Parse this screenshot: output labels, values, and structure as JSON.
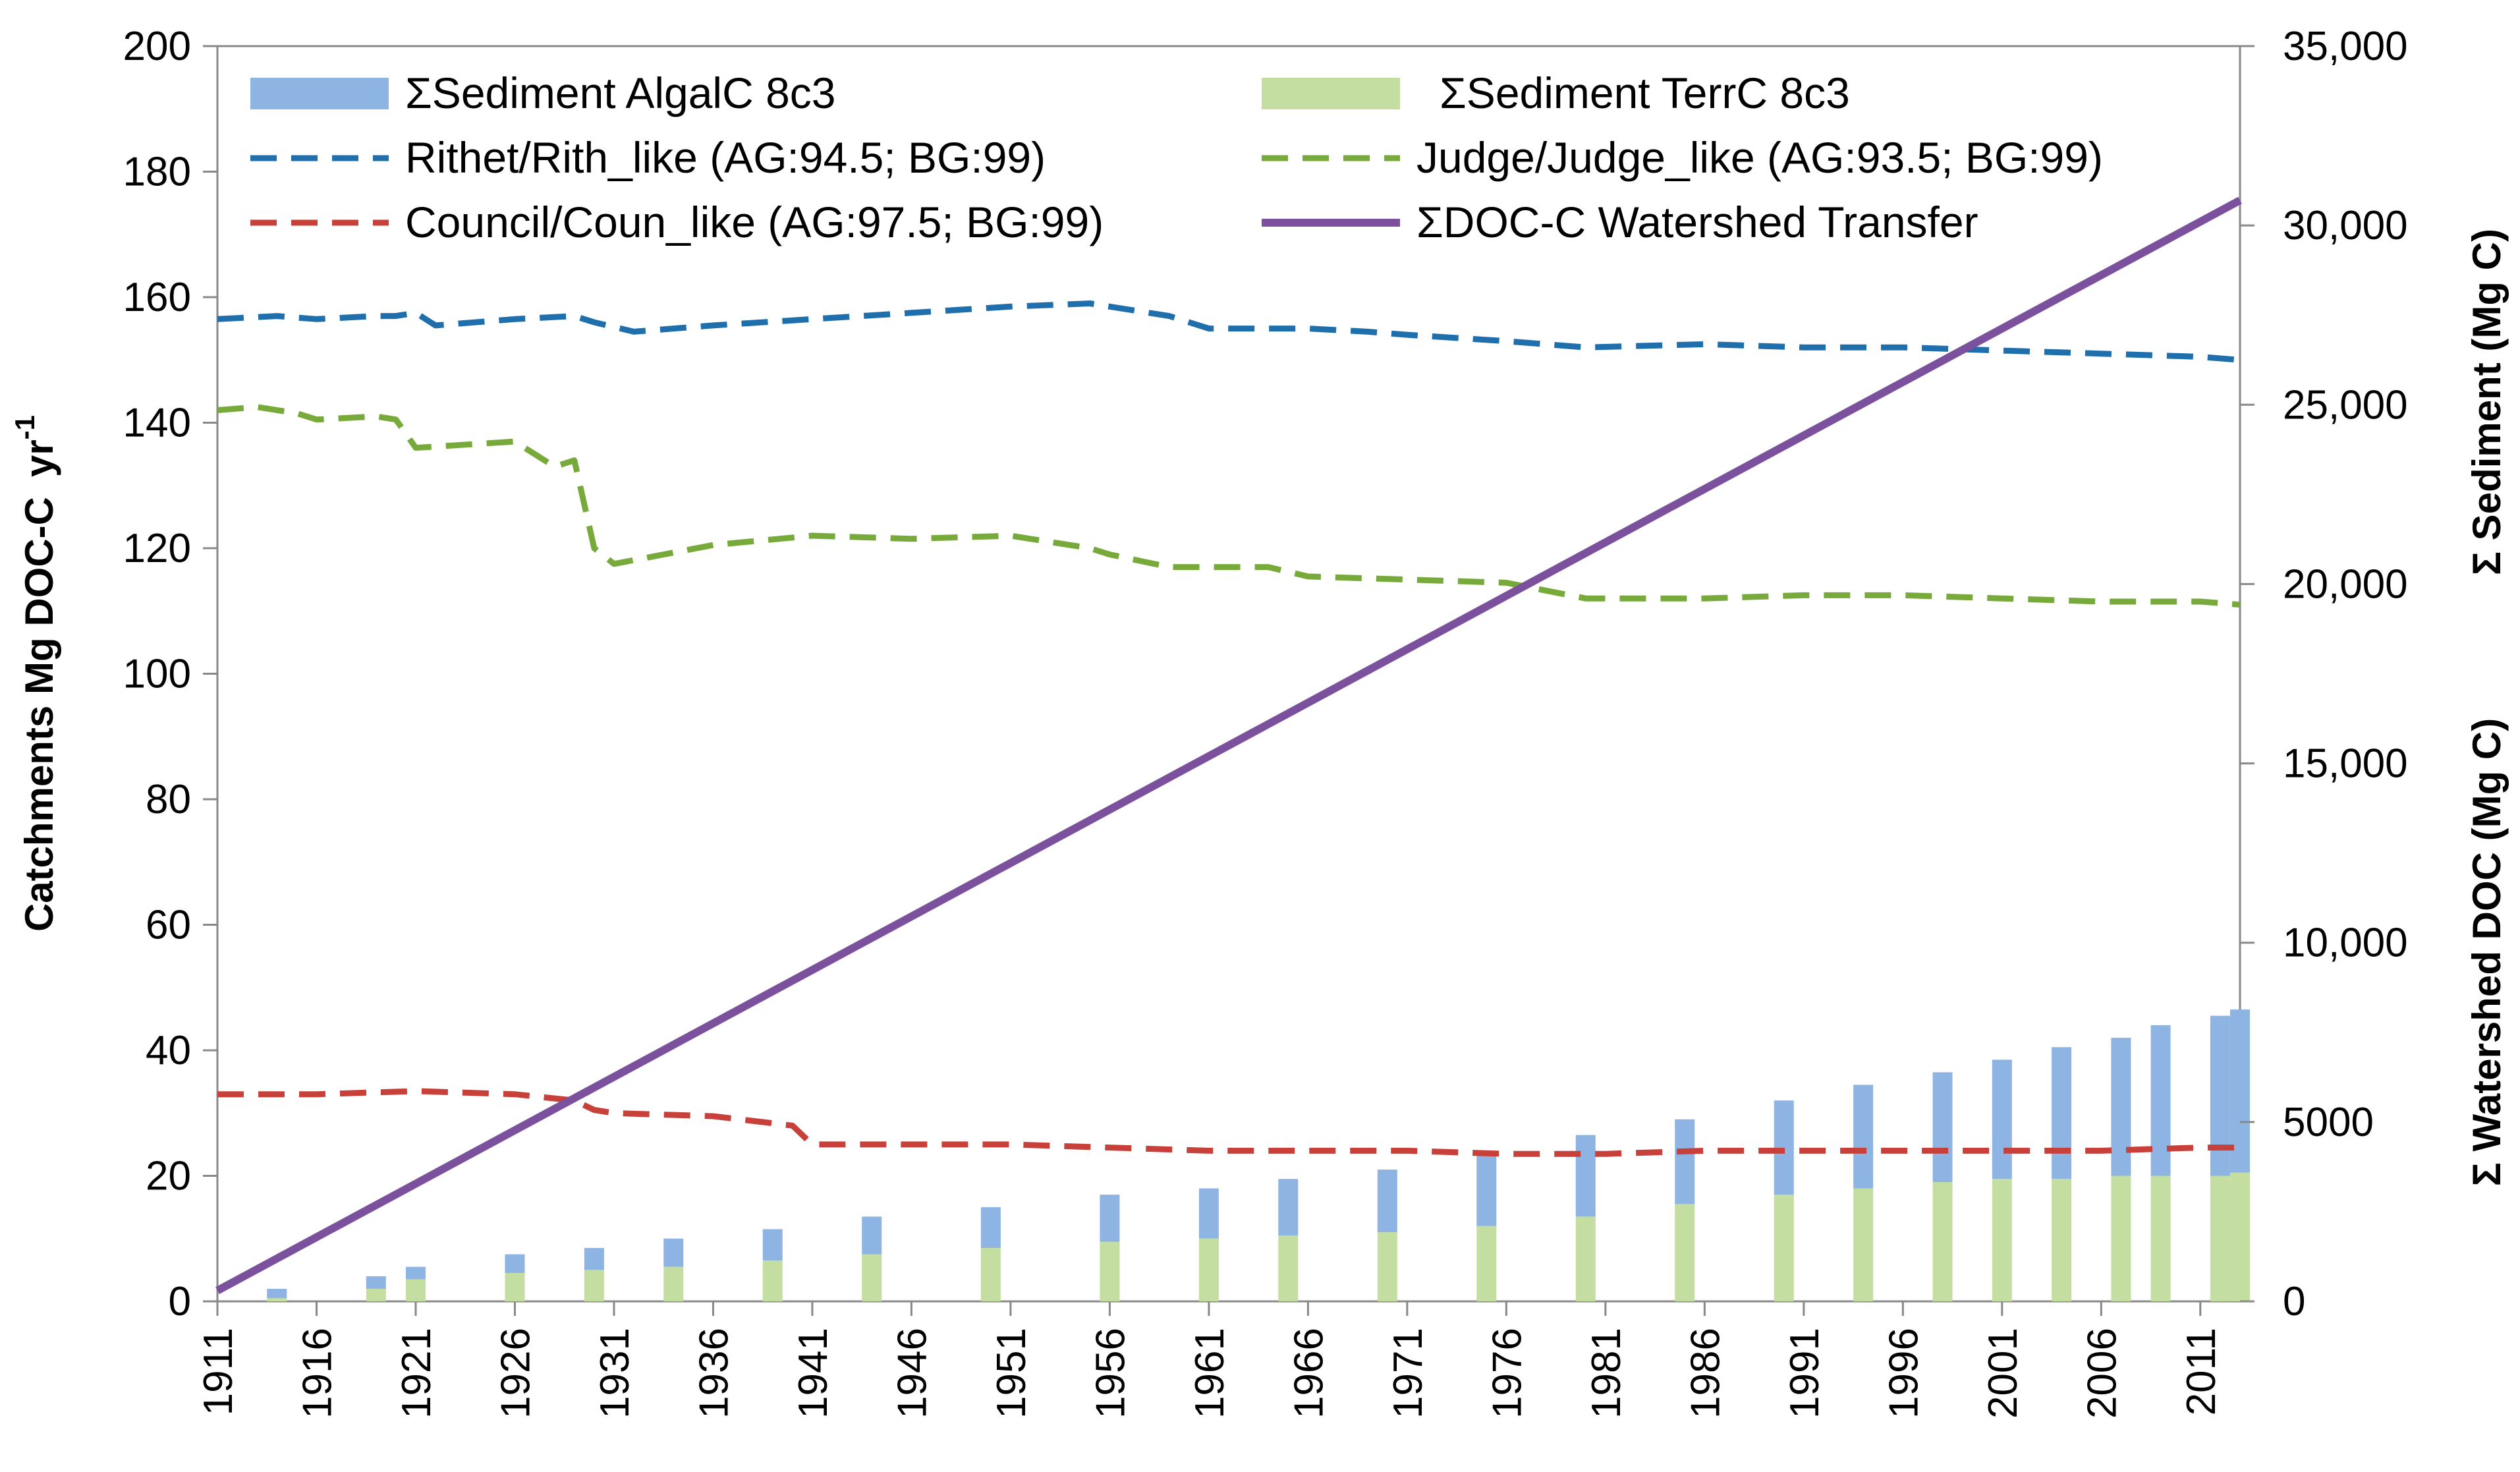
{
  "chart_data": {
    "type": "bar+line",
    "title": "",
    "xlabel": "",
    "ylabel_left": "Catchments Mg DOC-C",
    "ylabel_left_unit": "yr",
    "ylabel_left_sup": "-1",
    "ylabel_right_top": "Σ Sediment  (Mg C)",
    "ylabel_right_bottom": "Σ Watershed DOC  (Mg C)",
    "left_axis": {
      "min": 0,
      "max": 200,
      "ticks": [
        0,
        20,
        40,
        60,
        80,
        100,
        120,
        140,
        160,
        180,
        200
      ],
      "tick_labels": [
        "0",
        "20",
        "40",
        "60",
        "80",
        "100",
        "120",
        "140",
        "160",
        "180",
        "200"
      ]
    },
    "right_axis": {
      "min": 0,
      "max": 35000,
      "ticks": [
        0,
        5000,
        10000,
        15000,
        20000,
        25000,
        30000,
        35000
      ],
      "tick_labels": [
        "0",
        "5000",
        "10,000",
        "15,000",
        "20,000",
        "25,000",
        "30,000",
        "35,000"
      ]
    },
    "x_axis": {
      "min": 1911,
      "max": 2013,
      "ticks": [
        1911,
        1916,
        1921,
        1926,
        1931,
        1936,
        1941,
        1946,
        1951,
        1956,
        1961,
        1966,
        1971,
        1976,
        1981,
        1986,
        1991,
        1996,
        2001,
        2006,
        2011
      ],
      "tick_labels": [
        "1911",
        "1916",
        "1921",
        "1926",
        "1931",
        "1936",
        "1941",
        "1946",
        "1951",
        "1956",
        "1961",
        "1966",
        "1971",
        "1976",
        "1981",
        "1986",
        "1991",
        "1996",
        "2001",
        "2006",
        "2011"
      ]
    },
    "legend": {
      "placement": "top-inside",
      "entries": [
        {
          "key": "algal",
          "label": "ΣSediment AlgalC 8c3",
          "color": "#8db4e2",
          "style": "bar"
        },
        {
          "key": "terr",
          "label": "ΣSediment TerrC 8c3",
          "color": "#c3dea0",
          "style": "bar"
        },
        {
          "key": "rithet",
          "label": "Rithet/Rith_like (AG:94.5; BG:99)",
          "color": "#1f6fad",
          "style": "dash"
        },
        {
          "key": "judge",
          "label": "Judge/Judge_like (AG:93.5; BG:99)",
          "color": "#77aa3a",
          "style": "dash"
        },
        {
          "key": "council",
          "label": "Council/Coun_like (AG:97.5; BG:99)",
          "color": "#c8403a",
          "style": "dash"
        },
        {
          "key": "doc",
          "label": "ΣDOC-C Watershed Transfer",
          "color": "#7b519d",
          "style": "solid"
        }
      ]
    },
    "bars": {
      "axis": "left",
      "years": [
        1914,
        1919,
        1921,
        1926,
        1930,
        1934,
        1939,
        1944,
        1950,
        1956,
        1961,
        1965,
        1970,
        1975,
        1980,
        1985,
        1990,
        1994,
        1998,
        2001,
        2004,
        2007,
        2009,
        2012,
        2013
      ],
      "terr": [
        0.5,
        2.0,
        3.5,
        4.5,
        5.0,
        5.5,
        6.5,
        7.5,
        8.5,
        9.5,
        10.0,
        10.5,
        11.0,
        12.0,
        13.5,
        15.5,
        17.0,
        18.0,
        19.0,
        19.5,
        19.5,
        20.0,
        20.0,
        20.0,
        20.5
      ],
      "total": [
        2.0,
        4.0,
        5.5,
        7.5,
        8.5,
        10.0,
        11.5,
        13.5,
        15.0,
        17.0,
        18.0,
        19.5,
        21.0,
        23.5,
        26.5,
        29.0,
        32.0,
        34.5,
        36.5,
        38.5,
        40.5,
        42.0,
        44.0,
        45.5,
        46.5
      ]
    },
    "series": [
      {
        "key": "rithet",
        "axis": "left",
        "x": [
          1911,
          1914,
          1916,
          1919,
          1920,
          1921,
          1922,
          1924,
          1926,
          1929,
          1930,
          1932,
          1936,
          1941,
          1946,
          1951,
          1955,
          1956,
          1959,
          1961,
          1966,
          1969,
          1971,
          1976,
          1980,
          1986,
          1991,
          1996,
          2001,
          2006,
          2011,
          2013
        ],
        "y": [
          156.5,
          157,
          156.5,
          157,
          157,
          157.5,
          155.5,
          156,
          156.5,
          157,
          156,
          154.5,
          155.5,
          156.5,
          157.5,
          158.5,
          159,
          158.5,
          157,
          155,
          155,
          154.5,
          154,
          153,
          152,
          152.5,
          152,
          152,
          151.5,
          151,
          150.5,
          150
        ]
      },
      {
        "key": "judge",
        "axis": "left",
        "x": [
          1911,
          1913,
          1915,
          1916,
          1919,
          1920,
          1921,
          1926,
          1928,
          1929,
          1930,
          1931,
          1936,
          1941,
          1946,
          1951,
          1955,
          1956,
          1959,
          1961,
          1964,
          1966,
          1971,
          1976,
          1980,
          1986,
          1991,
          1996,
          2001,
          2006,
          2011,
          2013
        ],
        "y": [
          142,
          142.5,
          141.5,
          140.5,
          141,
          140.5,
          136,
          137,
          133,
          134,
          120,
          117.5,
          120.5,
          122,
          121.5,
          122,
          120,
          119,
          117,
          117,
          117,
          115.5,
          115,
          114.5,
          112,
          112,
          112.5,
          112.5,
          112,
          111.5,
          111.5,
          111
        ]
      },
      {
        "key": "council",
        "axis": "left",
        "x": [
          1911,
          1916,
          1921,
          1926,
          1929,
          1930,
          1931,
          1936,
          1940,
          1941,
          1946,
          1951,
          1956,
          1961,
          1966,
          1971,
          1976,
          1981,
          1986,
          1991,
          1996,
          2001,
          2006,
          2011,
          2013
        ],
        "y": [
          33,
          33,
          33.5,
          33,
          32,
          30.5,
          30,
          29.5,
          28,
          25,
          25,
          25,
          24.5,
          24,
          24,
          24,
          23.5,
          23.5,
          24,
          24,
          24,
          24,
          24,
          24.5,
          24.5
        ]
      },
      {
        "key": "doc",
        "axis": "right",
        "x": [
          1911,
          2013
        ],
        "y": [
          300,
          30700
        ]
      }
    ]
  }
}
